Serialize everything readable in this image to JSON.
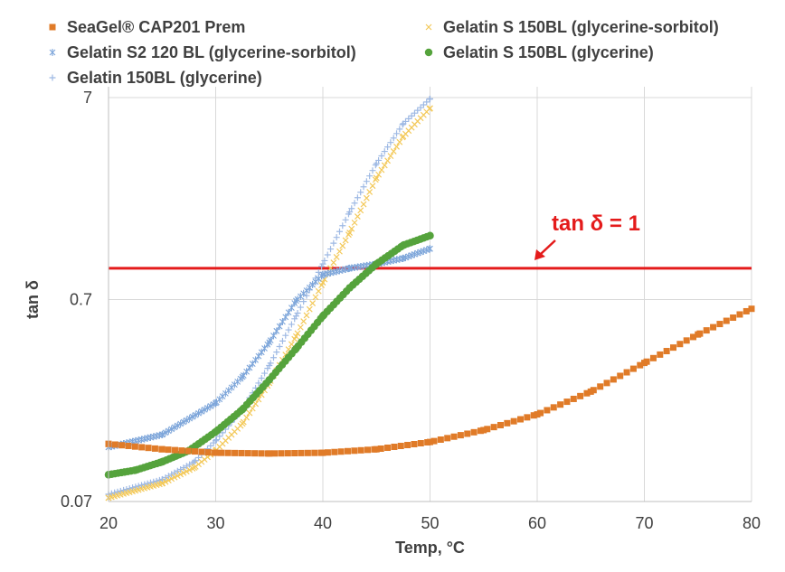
{
  "chart_data": {
    "type": "scatter",
    "xlabel": "Temp, °C",
    "ylabel": "tan δ",
    "xlim": [
      20,
      80
    ],
    "ylim": [
      0.07,
      7
    ],
    "y_scale": "log",
    "x_ticks": [
      "20",
      "30",
      "40",
      "50",
      "60",
      "70",
      "80"
    ],
    "y_ticks": [
      "0.07",
      "0.7",
      "7"
    ],
    "grid": true,
    "legend_position": "top",
    "series": [
      {
        "name": "SeaGel® CAP201 Prem",
        "marker": "square",
        "color": "#E07B28",
        "x": [
          20,
          25,
          30,
          35,
          40,
          45,
          50,
          55,
          60,
          65,
          70,
          75,
          80
        ],
        "y": [
          0.135,
          0.127,
          0.122,
          0.121,
          0.122,
          0.127,
          0.138,
          0.158,
          0.189,
          0.245,
          0.34,
          0.47,
          0.63
        ]
      },
      {
        "name": "Gelatin S 150BL (glycerine-sorbitol)",
        "marker": "x",
        "color": "#F3C95A",
        "x": [
          20,
          25,
          28,
          30,
          32.5,
          35,
          37.5,
          40,
          42.5,
          45,
          47.5,
          50
        ],
        "y": [
          0.073,
          0.086,
          0.103,
          0.125,
          0.17,
          0.27,
          0.46,
          0.85,
          1.5,
          2.8,
          4.5,
          6.2
        ]
      },
      {
        "name": "Gelatin S2 120 BL (glycerine-sorbitol)",
        "marker": "asterisk",
        "color": "#7EA6DA",
        "x": [
          20,
          25,
          30,
          32.5,
          35,
          37.5,
          40,
          42.5,
          45,
          47.5,
          50
        ],
        "y": [
          0.13,
          0.15,
          0.215,
          0.29,
          0.43,
          0.69,
          0.93,
          1.0,
          1.05,
          1.12,
          1.25
        ]
      },
      {
        "name": "Gelatin S 150BL (glycerine)",
        "marker": "circle",
        "color": "#55A33C",
        "x": [
          20,
          22.5,
          25,
          27.5,
          30,
          32.5,
          35,
          37.5,
          40,
          42.5,
          45,
          47.5,
          50
        ],
        "y": [
          0.095,
          0.1,
          0.11,
          0.125,
          0.155,
          0.2,
          0.28,
          0.4,
          0.58,
          0.8,
          1.05,
          1.3,
          1.45
        ]
      },
      {
        "name": "Gelatin 150BL (glycerine)",
        "marker": "plus",
        "color": "#9EB9E4",
        "x": [
          20,
          25,
          28,
          30,
          32.5,
          35,
          37.5,
          40,
          42.5,
          45,
          47.5,
          50
        ],
        "y": [
          0.076,
          0.09,
          0.11,
          0.14,
          0.2,
          0.33,
          0.58,
          1.05,
          1.9,
          3.3,
          5.2,
          6.9
        ]
      }
    ],
    "reference_line": {
      "y": 1,
      "color": "#E41B1B"
    },
    "annotations": [
      {
        "text": "tan δ = 1",
        "color": "#E41B1B"
      }
    ]
  }
}
